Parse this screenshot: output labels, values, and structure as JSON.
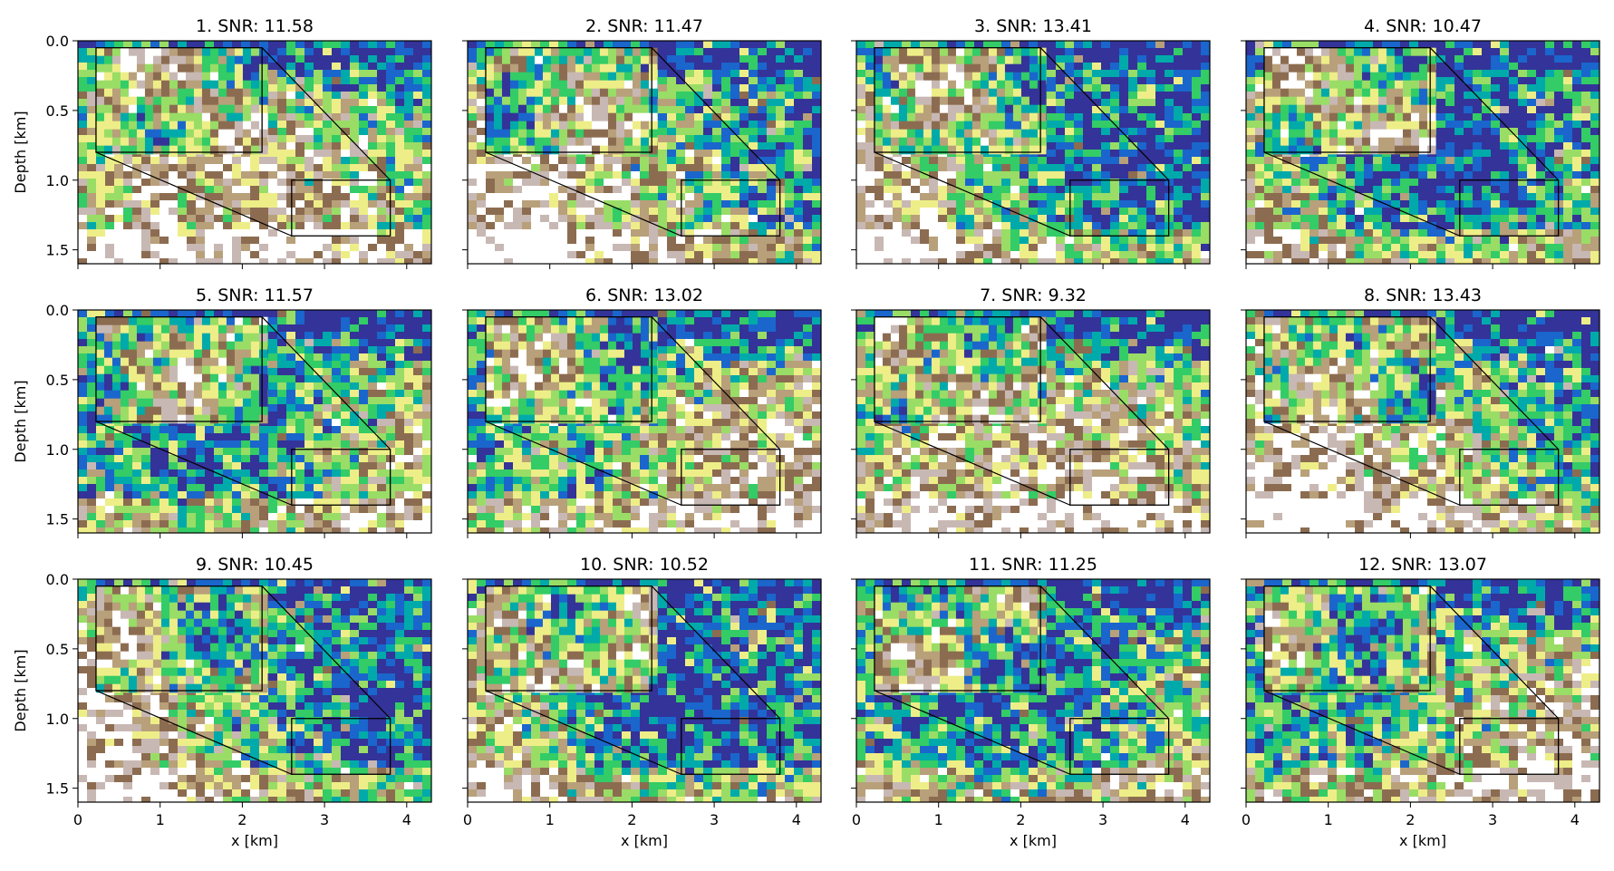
{
  "figure": {
    "x_label": "x [km]",
    "y_label": "Depth [km]"
  },
  "colors": {
    "colormap": [
      "#333399",
      "#1a66cc",
      "#00aaaa",
      "#33cc66",
      "#99dd66",
      "#eeee88",
      "#b8a07a",
      "#8c6c50",
      "#c8b8b4",
      "#ffffff"
    ],
    "frame": "#000000"
  },
  "chart_data": {
    "type": "heatmap",
    "colormap_name": "terrain",
    "xlim": [
      0,
      4.3
    ],
    "ylim": [
      1.6,
      0.0
    ],
    "x_ticks": [
      "0",
      "1",
      "2",
      "3",
      "4"
    ],
    "x_tick_values": [
      0,
      1,
      2,
      3,
      4
    ],
    "y_ticks": [
      "0.0",
      "0.5",
      "1.0",
      "1.5"
    ],
    "y_tick_values": [
      0.0,
      0.5,
      1.0,
      1.5
    ],
    "zoom_region": {
      "x": [
        2.6,
        3.8
      ],
      "depth": [
        1.0,
        1.4
      ]
    },
    "inset_region": {
      "x": [
        0.22,
        2.24
      ],
      "depth": [
        0.05,
        0.8
      ]
    },
    "panels": [
      {
        "title": "1. SNR: 11.58",
        "snr": 11.58
      },
      {
        "title": "2. SNR: 11.47",
        "snr": 11.47
      },
      {
        "title": "3. SNR: 13.41",
        "snr": 13.41
      },
      {
        "title": "4. SNR: 10.47",
        "snr": 10.47
      },
      {
        "title": "5. SNR: 11.57",
        "snr": 11.57
      },
      {
        "title": "6. SNR: 13.02",
        "snr": 13.02
      },
      {
        "title": "7. SNR: 9.32",
        "snr": 9.32
      },
      {
        "title": "8. SNR: 13.43",
        "snr": 13.43
      },
      {
        "title": "9. SNR: 10.45",
        "snr": 10.45
      },
      {
        "title": "10. SNR: 10.52",
        "snr": 10.52
      },
      {
        "title": "11. SNR: 11.25",
        "snr": 11.25
      },
      {
        "title": "12. SNR: 13.07",
        "snr": 13.07
      }
    ]
  }
}
